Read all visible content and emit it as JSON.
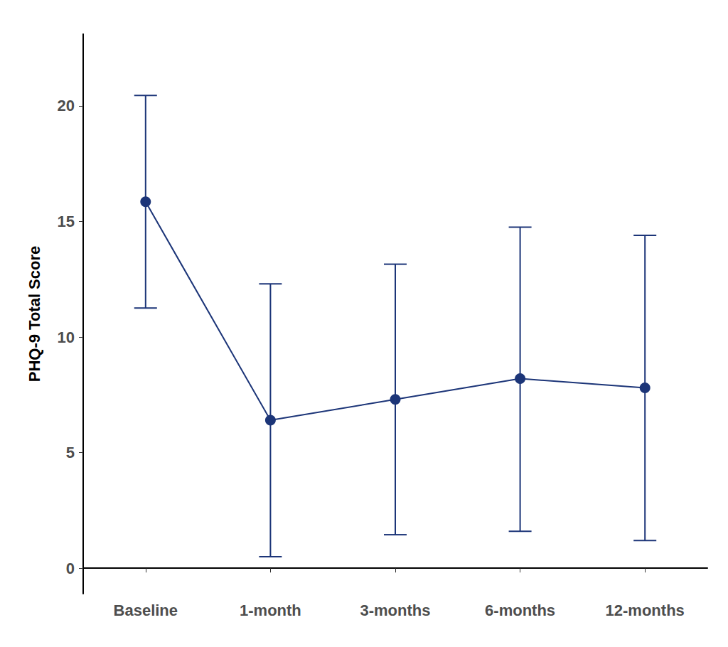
{
  "chart_data": {
    "type": "line",
    "y_label": "PHQ-9 Total Score",
    "categories": [
      "Baseline",
      "1-month",
      "3-months",
      "6-months",
      "12-months"
    ],
    "values": [
      15.85,
      6.4,
      7.3,
      8.2,
      7.8
    ],
    "error_lower": [
      11.25,
      0.5,
      1.45,
      1.6,
      1.2
    ],
    "error_upper": [
      20.45,
      12.3,
      13.15,
      14.75,
      14.4
    ],
    "color": "#1c3578",
    "marker": "circle",
    "ylim": [
      -1.1,
      23.1
    ],
    "yticks": [
      0,
      5,
      10,
      15,
      20
    ],
    "grid": false
  }
}
